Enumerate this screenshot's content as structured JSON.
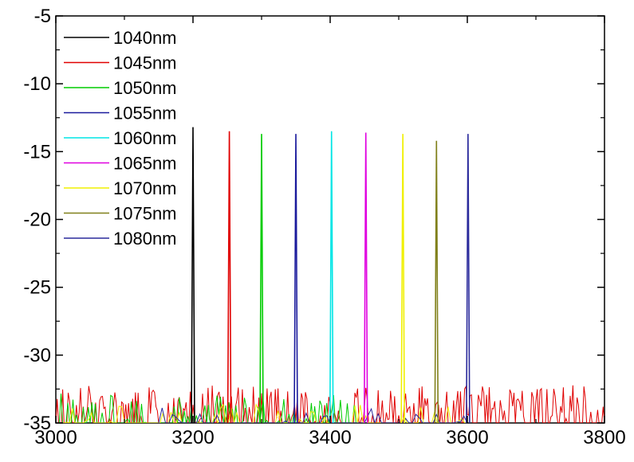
{
  "chart_data": {
    "type": "line",
    "title": "",
    "xlabel": "",
    "ylabel": "",
    "xlim": [
      3000,
      3800
    ],
    "ylim": [
      -35,
      -5
    ],
    "x_ticks": [
      3000,
      3200,
      3400,
      3600,
      3800
    ],
    "x_tick_labels": [
      "3000",
      "3200",
      "3400",
      "3600",
      "3800"
    ],
    "y_ticks": [
      -5,
      -10,
      -15,
      -20,
      -25,
      -30,
      -35
    ],
    "y_tick_labels": [
      "-5",
      "-10",
      "-15",
      "-20",
      "-25",
      "-30",
      "-35"
    ],
    "grid": false,
    "legend_position": "top-left",
    "series": [
      {
        "name": "1040nm",
        "color": "#000000",
        "peak_x": 3200,
        "peak_y": -13.2
      },
      {
        "name": "1045nm",
        "color": "#e00000",
        "peak_x": 3253,
        "peak_y": -13.5
      },
      {
        "name": "1050nm",
        "color": "#00cc00",
        "peak_x": 3300,
        "peak_y": -13.7
      },
      {
        "name": "1055nm",
        "color": "#1a1a9c",
        "peak_x": 3350,
        "peak_y": -13.7
      },
      {
        "name": "1060nm",
        "color": "#00e5e5",
        "peak_x": 3402,
        "peak_y": -13.5
      },
      {
        "name": "1065nm",
        "color": "#e000e0",
        "peak_x": 3452,
        "peak_y": -13.6
      },
      {
        "name": "1070nm",
        "color": "#f0f000",
        "peak_x": 3506,
        "peak_y": -13.7
      },
      {
        "name": "1075nm",
        "color": "#80801a",
        "peak_x": 3555,
        "peak_y": -14.2
      },
      {
        "name": "1080nm",
        "color": "#2a2a9c",
        "peak_x": 3601,
        "peak_y": -13.7
      }
    ]
  }
}
